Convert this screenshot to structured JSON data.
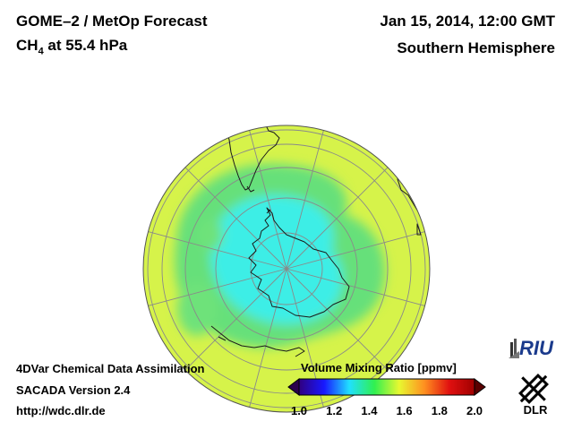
{
  "header": {
    "title": "GOME–2 / MetOp Forecast",
    "species_main": "CH",
    "species_sub": "4",
    "species_rest": " at 55.4 hPa",
    "datetime": "Jan 15, 2014, 12:00 GMT",
    "hemisphere": "Southern Hemisphere"
  },
  "footer": {
    "line1": "4DVar Chemical Data Assimilation",
    "line2": "SACADA Version 2.4",
    "line3": "http://wdc.dlr.de"
  },
  "colorbar": {
    "title": "Volume Mixing Ratio [ppmv]",
    "ticks": [
      "1.0",
      "1.2",
      "1.4",
      "1.6",
      "1.8",
      "2.0"
    ],
    "range": [
      1.0,
      2.0
    ],
    "colors": [
      "#300080",
      "#1818ff",
      "#20e0ff",
      "#30f050",
      "#e8f830",
      "#ff9020",
      "#e01010",
      "#a00000"
    ]
  },
  "map": {
    "projection": "orthographic south pole",
    "background_field_value": 1.6
  },
  "logos": {
    "riu": "RIU",
    "dlr": "DLR"
  }
}
